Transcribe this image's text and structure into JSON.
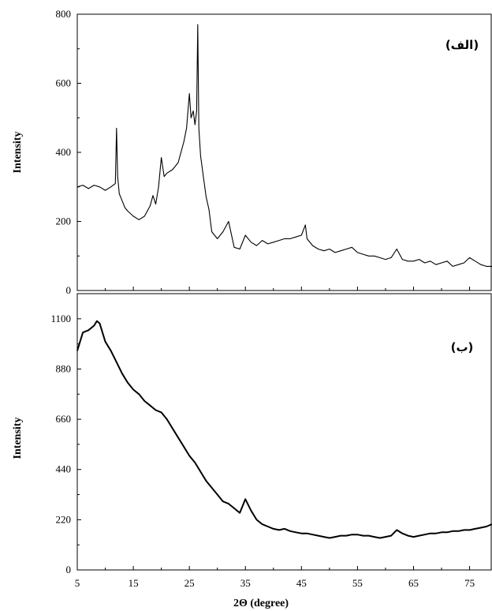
{
  "chart_data": [
    {
      "type": "line",
      "panel_label": "(الف)",
      "ylabel": "Intensity",
      "xlabel": "",
      "xlim": [
        5,
        79
      ],
      "ylim": [
        0,
        800
      ],
      "x_ticks": [
        5,
        15,
        25,
        35,
        45,
        55,
        65,
        75
      ],
      "y_ticks": [
        0,
        200,
        400,
        600,
        800
      ],
      "y_tick_labels": [
        "0",
        "200",
        "400",
        "600",
        "800"
      ],
      "grid": false,
      "series": [
        {
          "color": "#000000",
          "x": [
            5,
            6,
            7,
            8,
            9,
            10,
            11,
            11.8,
            12,
            12.2,
            12.5,
            13,
            13.5,
            14,
            15,
            16,
            17,
            18,
            18.5,
            19,
            19.5,
            20,
            20.5,
            21,
            22,
            23,
            24,
            24.5,
            25,
            25.3,
            25.7,
            26,
            26.3,
            26.5,
            26.7,
            27,
            27.5,
            28,
            28.5,
            29,
            30,
            31,
            32,
            33,
            34,
            35,
            36,
            37,
            38,
            39,
            40,
            41,
            42,
            43,
            44,
            45,
            45.7,
            46,
            47,
            48,
            49,
            50,
            51,
            52,
            53,
            54,
            55,
            56,
            57,
            58,
            59,
            60,
            61,
            62,
            63,
            64,
            65,
            66,
            67,
            68,
            69,
            70,
            71,
            72,
            73,
            74,
            75,
            76,
            77,
            78,
            79
          ],
          "y": [
            300,
            305,
            295,
            305,
            300,
            290,
            300,
            310,
            470,
            330,
            280,
            260,
            240,
            230,
            215,
            205,
            215,
            245,
            275,
            250,
            300,
            385,
            330,
            340,
            350,
            370,
            430,
            470,
            570,
            500,
            520,
            480,
            520,
            770,
            470,
            390,
            330,
            270,
            235,
            170,
            150,
            170,
            200,
            125,
            120,
            160,
            140,
            130,
            145,
            135,
            140,
            145,
            150,
            150,
            155,
            160,
            190,
            150,
            130,
            120,
            115,
            120,
            110,
            115,
            120,
            125,
            110,
            105,
            100,
            100,
            95,
            90,
            95,
            120,
            90,
            85,
            85,
            90,
            80,
            85,
            75,
            80,
            85,
            70,
            75,
            80,
            95,
            85,
            75,
            70,
            70
          ]
        }
      ]
    },
    {
      "type": "line",
      "panel_label": "(ب)",
      "ylabel": "Intensity",
      "xlabel": "2Θ (degree)",
      "xlim": [
        5,
        79
      ],
      "ylim": [
        0,
        1210
      ],
      "x_ticks": [
        5,
        15,
        25,
        35,
        45,
        55,
        65,
        75
      ],
      "x_tick_labels": [
        "5",
        "15",
        "25",
        "35",
        "45",
        "55",
        "65",
        "75"
      ],
      "y_ticks": [
        0,
        220,
        440,
        660,
        880,
        1100
      ],
      "y_tick_labels": [
        "0",
        "220",
        "440",
        "660",
        "880",
        "1100"
      ],
      "grid": false,
      "series": [
        {
          "color": "#000000",
          "x": [
            5,
            6,
            7,
            8,
            8.5,
            9,
            10,
            11,
            12,
            13,
            14,
            15,
            16,
            17,
            18,
            19,
            20,
            21,
            22,
            23,
            24,
            25,
            26,
            27,
            28,
            29,
            30,
            31,
            32,
            33,
            34,
            35,
            36,
            37,
            38,
            39,
            40,
            41,
            42,
            43,
            44,
            45,
            46,
            47,
            48,
            49,
            50,
            51,
            52,
            53,
            54,
            55,
            56,
            57,
            58,
            59,
            60,
            61,
            62,
            63,
            64,
            65,
            66,
            67,
            68,
            69,
            70,
            71,
            72,
            73,
            74,
            75,
            76,
            77,
            78,
            79
          ],
          "y": [
            960,
            1040,
            1050,
            1070,
            1090,
            1080,
            1000,
            960,
            910,
            860,
            820,
            790,
            770,
            740,
            720,
            700,
            690,
            660,
            620,
            580,
            540,
            500,
            470,
            430,
            390,
            360,
            330,
            300,
            290,
            270,
            250,
            310,
            260,
            220,
            200,
            190,
            180,
            175,
            180,
            170,
            165,
            160,
            160,
            155,
            150,
            145,
            140,
            145,
            150,
            150,
            155,
            155,
            150,
            150,
            145,
            140,
            145,
            150,
            175,
            160,
            150,
            145,
            150,
            155,
            160,
            160,
            165,
            165,
            170,
            170,
            175,
            175,
            180,
            185,
            190,
            200
          ]
        }
      ]
    }
  ]
}
